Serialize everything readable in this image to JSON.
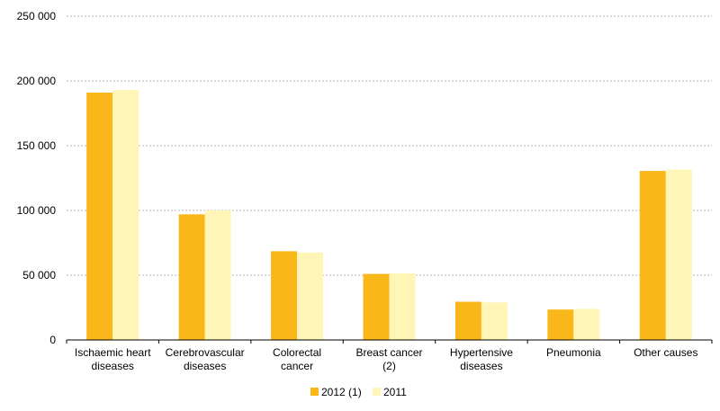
{
  "chart_data": {
    "type": "bar",
    "categories": [
      [
        "Ischaemic heart",
        "diseases"
      ],
      [
        "Cerebrovascular",
        "diseases"
      ],
      [
        "Colorectal",
        "cancer"
      ],
      [
        "Breast cancer",
        "(2)"
      ],
      [
        "Hypertensive",
        "diseases"
      ],
      [
        "Pneumonia"
      ],
      [
        "Other causes"
      ]
    ],
    "series": [
      {
        "name": "2012 (1)",
        "color": "#FAB71A",
        "values": [
          191000,
          97000,
          68500,
          51000,
          29500,
          23500,
          130500
        ]
      },
      {
        "name": "2011",
        "color": "#FFF5B7",
        "values": [
          193000,
          100000,
          67500,
          51500,
          29000,
          24000,
          131500
        ]
      }
    ],
    "yticks": [
      "0",
      "50 000",
      "100 000",
      "150 000",
      "200 000",
      "250 000"
    ],
    "ylim": [
      0,
      250000
    ],
    "grid": true,
    "legend_position": "bottom-center"
  }
}
